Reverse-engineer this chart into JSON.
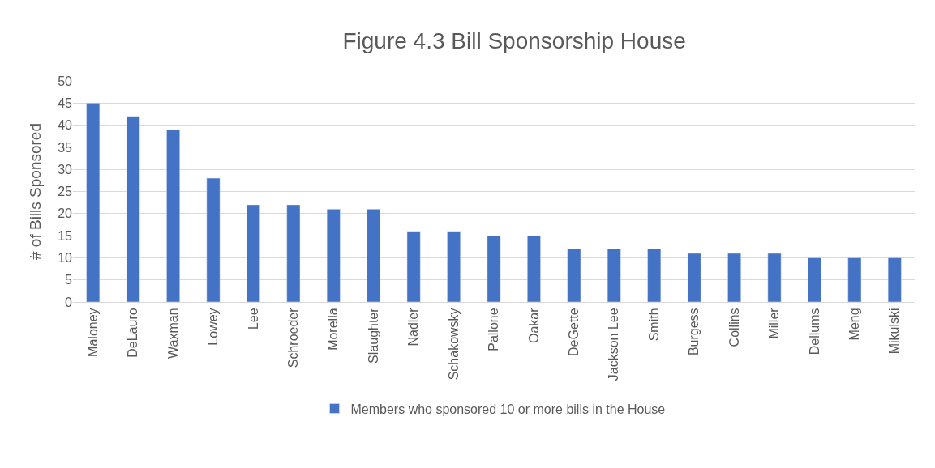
{
  "chart_data": {
    "type": "bar",
    "title": "Figure 4.3 Bill Sponsorship House",
    "ylabel": "# of Bills Sponsored",
    "categories": [
      "Maloney",
      "DeLauro",
      "Waxman",
      "Lowey",
      "Lee",
      "Schroeder",
      "Morella",
      "Slaughter",
      "Nadler",
      "Schakowsky",
      "Pallone",
      "Oakar",
      "DeGette",
      "Jackson Lee",
      "Smith",
      "Burgess",
      "Collins",
      "Miller",
      "Dellums",
      "Meng",
      "Mikulski"
    ],
    "series": [
      {
        "name": "Members who sponsored 10 or more bills in the House",
        "color": "#4472c4",
        "values": [
          45,
          42,
          39,
          28,
          22,
          22,
          21,
          21,
          16,
          16,
          15,
          15,
          12,
          12,
          12,
          11,
          11,
          11,
          10,
          10,
          10
        ]
      }
    ],
    "ylim": [
      0,
      50
    ],
    "yticks": [
      0,
      5,
      10,
      15,
      20,
      25,
      30,
      35,
      40,
      45,
      50
    ],
    "grid": "y",
    "legend": "bottom"
  }
}
